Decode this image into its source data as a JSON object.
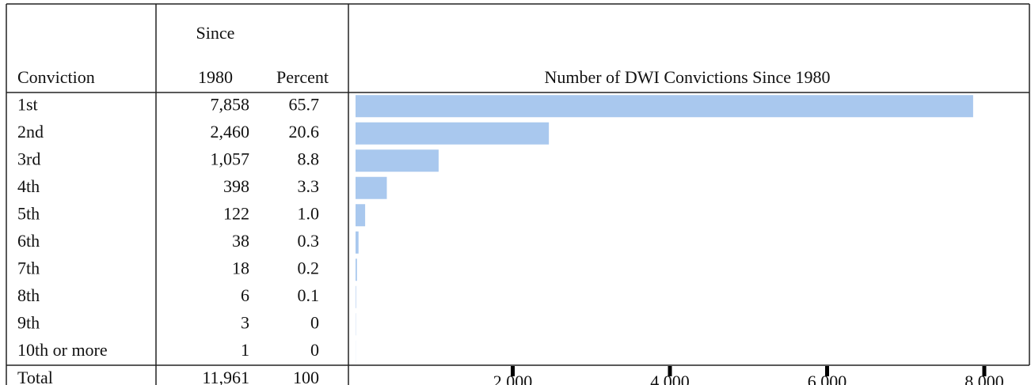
{
  "table": {
    "header": {
      "conviction": "Conviction",
      "since": [
        "Since",
        "1980"
      ],
      "percent": "Percent"
    },
    "percent": [
      "65.7",
      "20.6",
      "8.8",
      "3.3",
      "1.0",
      "0.3",
      "0.2",
      "0.1",
      "0",
      "0"
    ],
    "total": {
      "label": "Total",
      "count": "11,961",
      "percent": "100"
    }
  },
  "chart_data": {
    "type": "bar",
    "orientation": "horizontal",
    "title": "Number of DWI Convictions Since 1980",
    "categories": [
      "1st",
      "2nd",
      "3rd",
      "4th",
      "5th",
      "6th",
      "7th",
      "8th",
      "9th",
      "10th or more"
    ],
    "values": [
      7858,
      2460,
      1057,
      398,
      122,
      38,
      18,
      6,
      3,
      1
    ],
    "value_labels": [
      "7,858",
      "2,460",
      "1,057",
      "398",
      "122",
      "38",
      "18",
      "6",
      "3",
      "1"
    ],
    "color": "#a9c8ee",
    "xlim": [
      0,
      8000
    ],
    "xticks": [
      {
        "value": 2000,
        "label": "2,000"
      },
      {
        "value": 4000,
        "label": "4,000"
      },
      {
        "value": 6000,
        "label": "6,000"
      },
      {
        "value": 8000,
        "label": "8,000"
      }
    ]
  }
}
